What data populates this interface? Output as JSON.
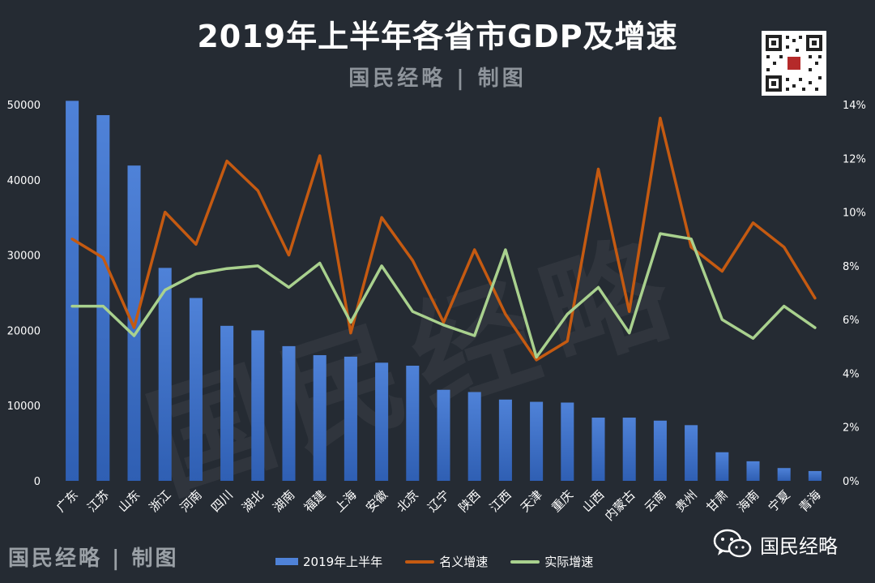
{
  "header": {
    "title": "2019年上半年各省市GDP及增速",
    "subtitle": "国民经略 | 制图"
  },
  "footer": {
    "brand": "国民经略 | 制图",
    "wechat_name": "国民经略"
  },
  "watermark": "国民经略",
  "colors": {
    "background": "#252b33",
    "bar": "#4f82d8",
    "nominal": "#c55a11",
    "real": "#a9d18e"
  },
  "chart_data": {
    "type": "bar",
    "categories": [
      "广东",
      "江苏",
      "山东",
      "浙江",
      "河南",
      "四川",
      "湖北",
      "湖南",
      "福建",
      "上海",
      "安徽",
      "北京",
      "辽宁",
      "陕西",
      "江西",
      "天津",
      "重庆",
      "山西",
      "内蒙古",
      "云南",
      "贵州",
      "甘肃",
      "海南",
      "宁夏",
      "青海"
    ],
    "series": [
      {
        "name": "2019年上半年",
        "axis": "left",
        "type": "bar",
        "values": [
          50500,
          48600,
          41900,
          28300,
          24300,
          20600,
          20000,
          17900,
          16700,
          16500,
          15700,
          15300,
          12100,
          11800,
          10800,
          10500,
          10400,
          8400,
          8400,
          8000,
          7400,
          3800,
          2600,
          1700,
          1300
        ]
      },
      {
        "name": "名义增速",
        "axis": "right",
        "type": "line",
        "values": [
          9.0,
          8.3,
          5.7,
          10.0,
          8.8,
          11.9,
          10.8,
          8.4,
          12.1,
          5.5,
          9.8,
          8.2,
          5.9,
          8.6,
          6.2,
          4.5,
          5.2,
          11.6,
          6.3,
          13.5,
          8.7,
          7.8,
          9.6,
          8.7,
          6.8
        ]
      },
      {
        "name": "实际增速",
        "axis": "right",
        "type": "line",
        "values": [
          6.5,
          6.5,
          5.4,
          7.1,
          7.7,
          7.9,
          8.0,
          7.2,
          8.1,
          5.9,
          8.0,
          6.3,
          5.8,
          5.4,
          8.6,
          4.6,
          6.2,
          7.2,
          5.5,
          9.2,
          9.0,
          6.0,
          5.3,
          6.5,
          5.7
        ]
      }
    ],
    "y_left": {
      "min": 0,
      "max": 50000,
      "ticks": [
        "0",
        "10000",
        "20000",
        "30000",
        "40000",
        "50000"
      ]
    },
    "y_right": {
      "min": 0,
      "max": 14,
      "ticks": [
        "0%",
        "2%",
        "4%",
        "6%",
        "8%",
        "10%",
        "12%",
        "14%"
      ]
    },
    "legend": [
      "2019年上半年",
      "名义增速",
      "实际增速"
    ],
    "legend_position": "bottom"
  }
}
